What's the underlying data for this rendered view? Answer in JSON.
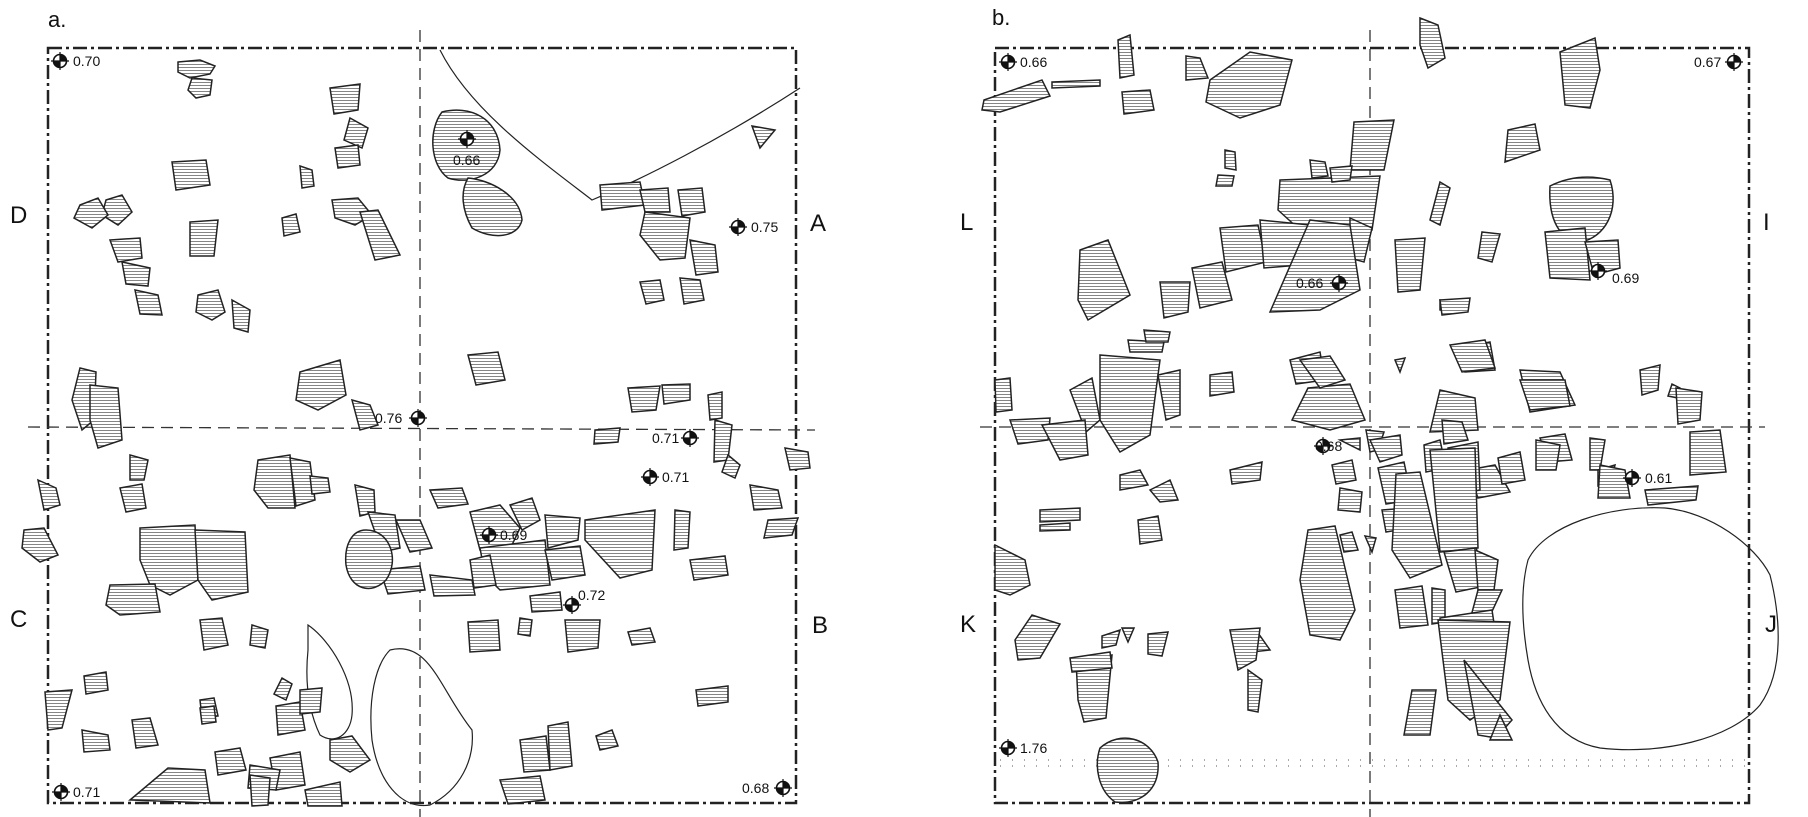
{
  "panels": [
    {
      "id": "a",
      "letter": "a.",
      "side_labels": {
        "d": "D",
        "a": "A",
        "c": "C",
        "b": "B"
      },
      "elevations": [
        "0.70",
        "0.66",
        "0.75",
        "0.76",
        "0.71",
        "0.71",
        "0.69",
        "0.72",
        "0.71",
        "0.68"
      ]
    },
    {
      "id": "b",
      "letter": "b.",
      "side_labels": {
        "l": "L",
        "i": "I",
        "k": "K",
        "j": "J"
      },
      "elevations": [
        "0.66",
        "0.67",
        "0.66",
        "0.69",
        "0.68",
        "0.61",
        "1.76"
      ]
    }
  ],
  "colors": {
    "line": "#222222",
    "hatch": "#555555",
    "background": "#ffffff"
  },
  "icons": {
    "datum": "survey-datum-icon"
  }
}
